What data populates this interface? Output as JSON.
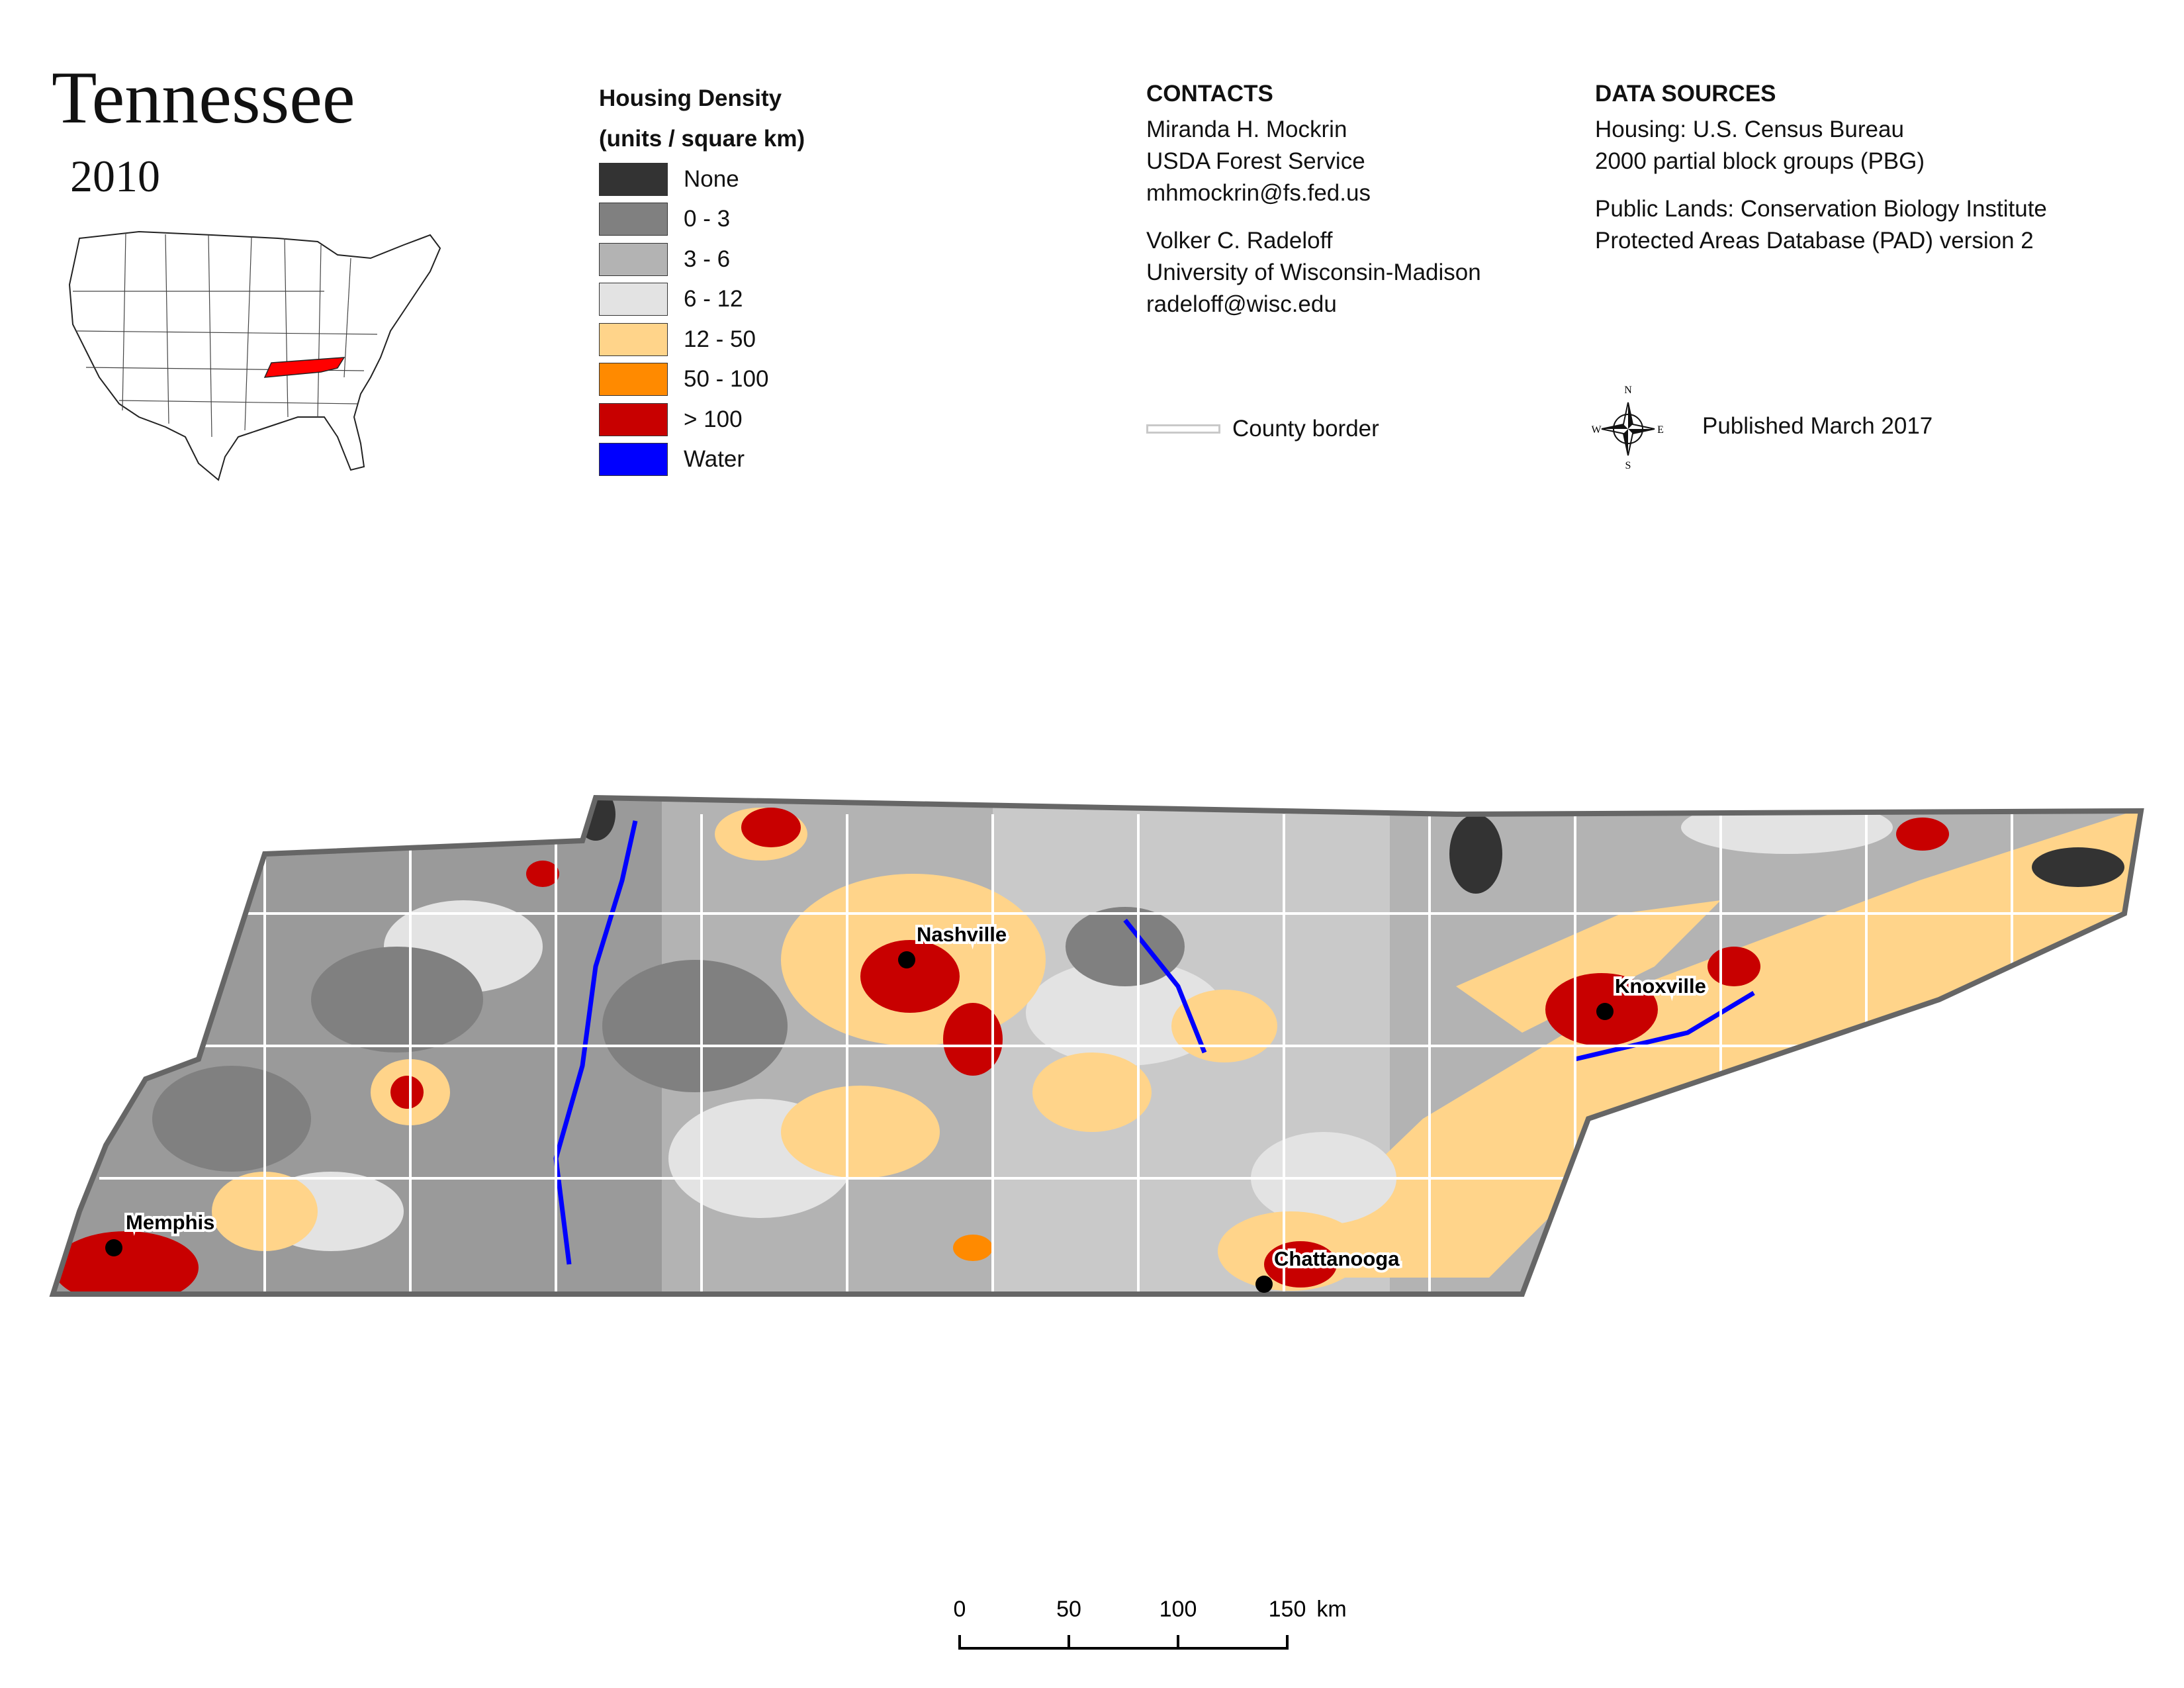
{
  "header": {
    "title": "Tennessee",
    "year": "2010"
  },
  "legend": {
    "title_line1": "Housing Density",
    "title_line2": "(units / square km)",
    "items": [
      {
        "label": "None",
        "color": "#333333"
      },
      {
        "label": "0 - 3",
        "color": "#808080"
      },
      {
        "label": "3 - 6",
        "color": "#b3b3b3"
      },
      {
        "label": "6 - 12",
        "color": "#e3e3e3"
      },
      {
        "label": "12 - 50",
        "color": "#ffd48a"
      },
      {
        "label": "50 - 100",
        "color": "#ff8a00"
      },
      {
        "label": "> 100",
        "color": "#c80000"
      },
      {
        "label": "Water",
        "color": "#0000ff"
      }
    ]
  },
  "contacts": {
    "title": "CONTACTS",
    "person1": {
      "name": "Miranda H. Mockrin",
      "org": "USDA Forest Service",
      "email": "mhmockrin@fs.fed.us"
    },
    "person2": {
      "name": "Volker C. Radeloff",
      "org": "University of Wisconsin-Madison",
      "email": "radeloff@wisc.edu"
    }
  },
  "sources": {
    "title": "DATA SOURCES",
    "housing_line1": "Housing: U.S. Census Bureau",
    "housing_line2": "2000 partial block groups (PBG)",
    "lands_line1": "Public Lands: Conservation Biology Institute",
    "lands_line2": "Protected Areas Database (PAD) version 2"
  },
  "county_border_label": "County border",
  "published": "Published March 2017",
  "compass": {
    "n": "N",
    "s": "S",
    "e": "E",
    "w": "W"
  },
  "cities": [
    {
      "name": "Nashville"
    },
    {
      "name": "Knoxville"
    },
    {
      "name": "Memphis"
    },
    {
      "name": "Chattanooga"
    }
  ],
  "scale": {
    "ticks": [
      "0",
      "50",
      "100",
      "150"
    ],
    "unit": "km"
  },
  "colors": {
    "highlight_state": "#ff0000",
    "state_outline": "#666666",
    "county_line": "#ffffff"
  }
}
